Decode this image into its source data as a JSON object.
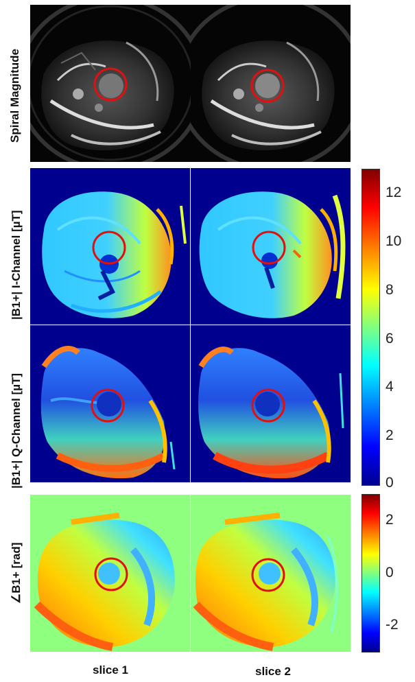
{
  "rows": {
    "magnitude_label": "Spiral Magnitude",
    "i_channel_label": "|B1+| I-Channel [µT]",
    "q_channel_label": "|B1+| Q-Channel [µT]",
    "phase_label": "∠B1+ [rad]"
  },
  "columns": {
    "slice1": "slice 1",
    "slice2": "slice 2"
  },
  "colorbar_magnitude": {
    "ticks": [
      "12",
      "10",
      "8",
      "6",
      "4",
      "2",
      "0"
    ],
    "range": [
      0,
      13
    ]
  },
  "colorbar_phase": {
    "ticks": [
      "2",
      "0",
      "-2"
    ],
    "range": [
      -3,
      3
    ]
  },
  "colors": {
    "roi_circle": "#e01010",
    "background_field": "#00008f",
    "phase_background": "#8fff80",
    "jet": [
      "#00008f",
      "#0000ff",
      "#0080ff",
      "#00ffff",
      "#80ff80",
      "#ffff00",
      "#ff8000",
      "#ff0000",
      "#800000"
    ]
  }
}
